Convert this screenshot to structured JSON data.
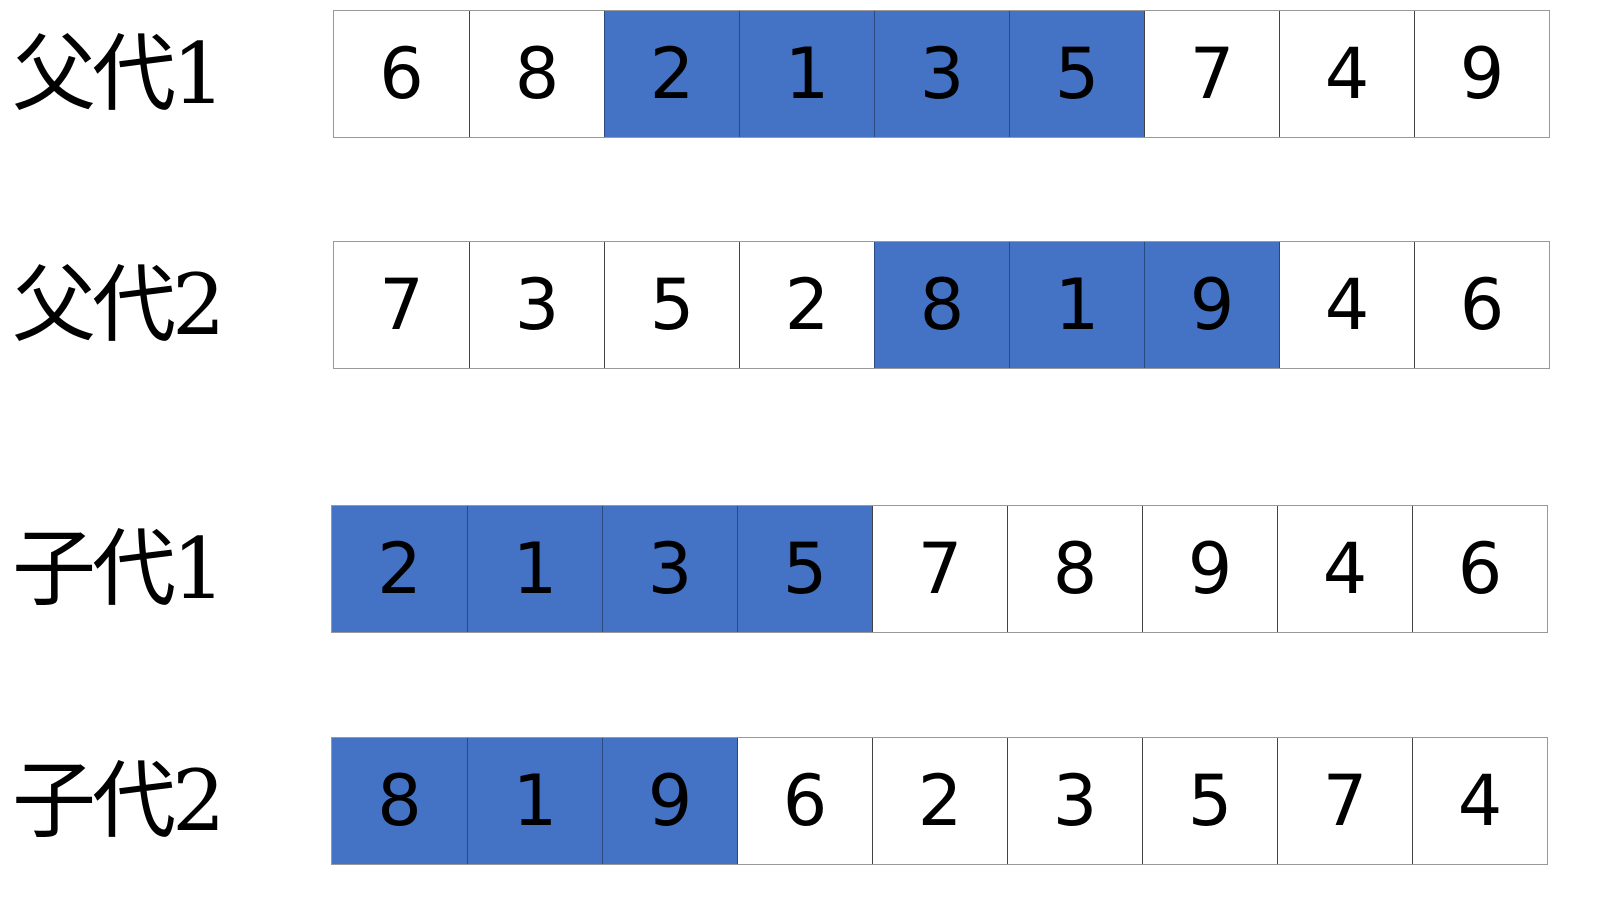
{
  "highlight_color": "#4472C4",
  "rows": [
    {
      "label": "父代1",
      "values": [
        "6",
        "8",
        "2",
        "1",
        "3",
        "5",
        "7",
        "4",
        "9"
      ],
      "highlighted": [
        false,
        false,
        true,
        true,
        true,
        true,
        false,
        false,
        false
      ]
    },
    {
      "label": "父代2",
      "values": [
        "7",
        "3",
        "5",
        "2",
        "8",
        "1",
        "9",
        "4",
        "6"
      ],
      "highlighted": [
        false,
        false,
        false,
        false,
        true,
        true,
        true,
        false,
        false
      ]
    },
    {
      "label": "子代1",
      "values": [
        "2",
        "1",
        "3",
        "5",
        "7",
        "8",
        "9",
        "4",
        "6"
      ],
      "highlighted": [
        true,
        true,
        true,
        true,
        false,
        false,
        false,
        false,
        false
      ]
    },
    {
      "label": "子代2",
      "values": [
        "8",
        "1",
        "9",
        "6",
        "2",
        "3",
        "5",
        "7",
        "4"
      ],
      "highlighted": [
        true,
        true,
        true,
        false,
        false,
        false,
        false,
        false,
        false
      ]
    }
  ]
}
